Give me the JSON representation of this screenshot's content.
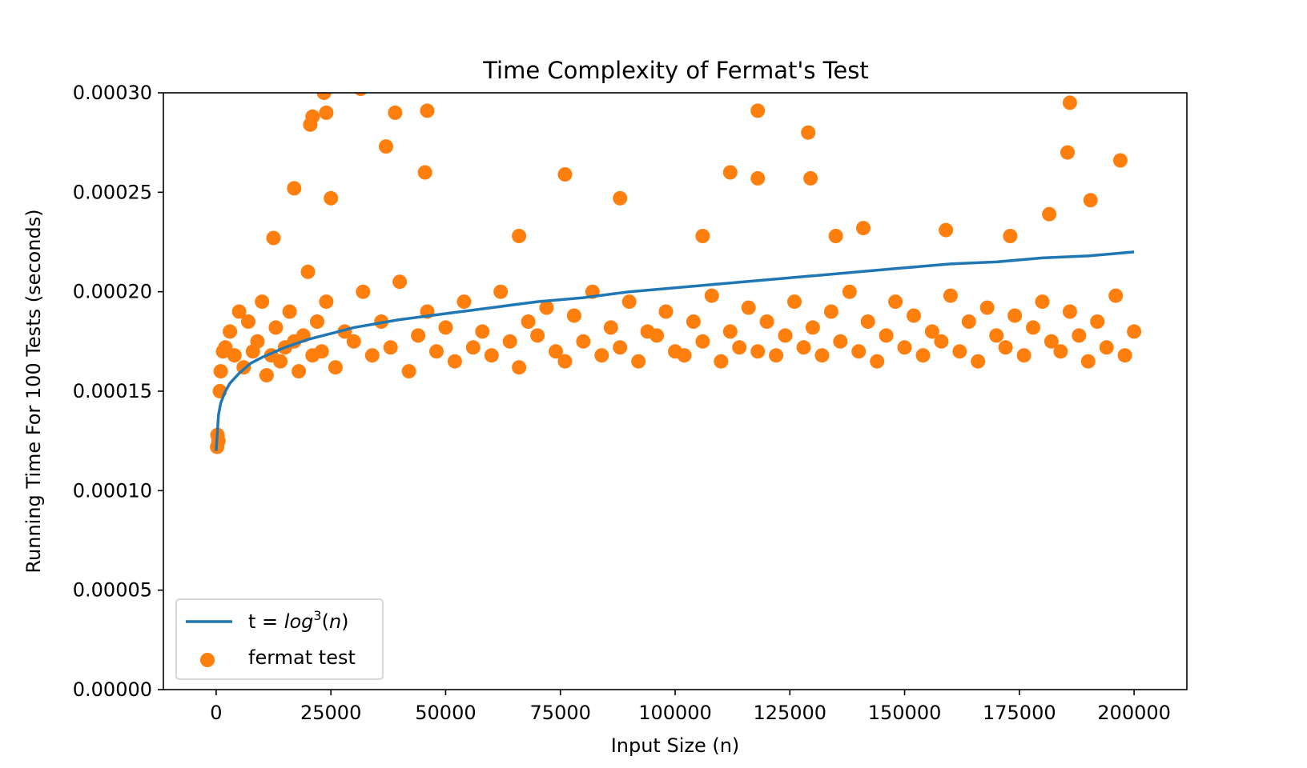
{
  "chart_data": {
    "type": "scatter",
    "title": "Time Complexity of Fermat's Test",
    "xlabel": "Input Size (n)",
    "ylabel": "Running Time For 100 Tests (seconds)",
    "xlim": [
      -11500,
      211500
    ],
    "ylim": [
      0,
      0.0003
    ],
    "x_ticks": [
      0,
      25000,
      50000,
      75000,
      100000,
      125000,
      150000,
      175000,
      200000
    ],
    "x_tick_labels": [
      "0",
      "25000",
      "50000",
      "75000",
      "100000",
      "125000",
      "150000",
      "175000",
      "200000"
    ],
    "y_ticks": [
      0,
      5e-05,
      0.0001,
      0.00015,
      0.0002,
      0.00025,
      0.0003
    ],
    "y_tick_labels": [
      "0.00000",
      "0.00005",
      "0.00010",
      "0.00015",
      "0.00020",
      "0.00025",
      "0.00030"
    ],
    "grid": false,
    "legend_position": "lower-left",
    "series": [
      {
        "name": "t = log³(n)",
        "name_parts": {
          "prefix": "t = ",
          "func": "log",
          "sup": "3",
          "suffix": "(n)"
        },
        "kind": "line",
        "color": "#1f77b4",
        "x": [
          1,
          500,
          1000,
          2000,
          3000,
          5000,
          7500,
          10000,
          15000,
          20000,
          25000,
          30000,
          40000,
          50000,
          60000,
          70000,
          80000,
          90000,
          100000,
          110000,
          120000,
          130000,
          140000,
          150000,
          160000,
          170000,
          180000,
          190000,
          200000
        ],
        "y": [
          0.00012,
          0.000138,
          0.000144,
          0.00015,
          0.000154,
          0.000159,
          0.000164,
          0.000167,
          0.000172,
          0.000176,
          0.000179,
          0.000182,
          0.000186,
          0.000189,
          0.000192,
          0.000195,
          0.000197,
          0.0002,
          0.000202,
          0.000204,
          0.000206,
          0.000208,
          0.00021,
          0.000212,
          0.000214,
          0.000215,
          0.000217,
          0.000218,
          0.00022
        ]
      },
      {
        "name": "fermat test",
        "kind": "scatter",
        "color": "#ff7f0e",
        "x": [
          200,
          300,
          500,
          800,
          1000,
          1500,
          2000,
          3000,
          4000,
          5000,
          6000,
          7000,
          8000,
          9000,
          10000,
          11000,
          12000,
          13000,
          14000,
          15000,
          16000,
          17000,
          18000,
          19000,
          20000,
          21000,
          22000,
          23000,
          24000,
          26000,
          28000,
          30000,
          32000,
          34000,
          36000,
          38000,
          40000,
          42000,
          44000,
          46000,
          48000,
          50000,
          52000,
          54000,
          56000,
          58000,
          60000,
          62000,
          64000,
          66000,
          68000,
          70000,
          72000,
          74000,
          76000,
          78000,
          80000,
          82000,
          84000,
          86000,
          88000,
          90000,
          92000,
          94000,
          96000,
          98000,
          100000,
          102000,
          104000,
          106000,
          108000,
          110000,
          112000,
          114000,
          116000,
          118000,
          120000,
          122000,
          124000,
          126000,
          128000,
          130000,
          132000,
          134000,
          136000,
          138000,
          140000,
          142000,
          144000,
          146000,
          148000,
          150000,
          152000,
          154000,
          156000,
          158000,
          160000,
          162000,
          164000,
          166000,
          168000,
          170000,
          172000,
          174000,
          176000,
          178000,
          180000,
          182000,
          184000,
          186000,
          188000,
          190000,
          192000,
          194000,
          196000,
          198000,
          200000,
          20500,
          21000,
          23500,
          24000,
          31500,
          39000,
          46000,
          118000,
          129000,
          186000,
          17000,
          25000,
          37000,
          45500,
          76000,
          88000,
          112000,
          118000,
          129500,
          185500,
          197000,
          141000,
          159000,
          173000,
          181500,
          190500,
          12500,
          66000,
          106000,
          135000
        ],
        "y": [
          0.000122,
          0.000128,
          0.000125,
          0.00015,
          0.00016,
          0.00017,
          0.000172,
          0.00018,
          0.000168,
          0.00019,
          0.000162,
          0.000185,
          0.00017,
          0.000175,
          0.000195,
          0.000158,
          0.000168,
          0.000182,
          0.000165,
          0.000172,
          0.00019,
          0.000175,
          0.00016,
          0.000178,
          0.00021,
          0.000168,
          0.000185,
          0.00017,
          0.000195,
          0.000162,
          0.00018,
          0.000175,
          0.0002,
          0.000168,
          0.000185,
          0.000172,
          0.000205,
          0.00016,
          0.000178,
          0.00019,
          0.00017,
          0.000182,
          0.000165,
          0.000195,
          0.000172,
          0.00018,
          0.000168,
          0.0002,
          0.000175,
          0.000162,
          0.000185,
          0.000178,
          0.000192,
          0.00017,
          0.000165,
          0.000188,
          0.000175,
          0.0002,
          0.000168,
          0.000182,
          0.000172,
          0.000195,
          0.000165,
          0.00018,
          0.000178,
          0.00019,
          0.00017,
          0.000168,
          0.000185,
          0.000175,
          0.000198,
          0.000165,
          0.00018,
          0.000172,
          0.000192,
          0.00017,
          0.000185,
          0.000168,
          0.000178,
          0.000195,
          0.000172,
          0.000182,
          0.000168,
          0.00019,
          0.000175,
          0.0002,
          0.00017,
          0.000185,
          0.000165,
          0.000178,
          0.000195,
          0.000172,
          0.000188,
          0.000168,
          0.00018,
          0.000175,
          0.000198,
          0.00017,
          0.000185,
          0.000165,
          0.000192,
          0.000178,
          0.000172,
          0.000188,
          0.000168,
          0.000182,
          0.000195,
          0.000175,
          0.00017,
          0.00019,
          0.000178,
          0.000165,
          0.000185,
          0.000172,
          0.000198,
          0.000168,
          0.00018,
          0.000284,
          0.000288,
          0.0003,
          0.00029,
          0.000302,
          0.00029,
          0.000291,
          0.000291,
          0.00028,
          0.000295,
          0.000252,
          0.000247,
          0.000273,
          0.00026,
          0.000259,
          0.000247,
          0.00026,
          0.000257,
          0.000257,
          0.00027,
          0.000266,
          0.000232,
          0.000231,
          0.000228,
          0.000239,
          0.000246,
          0.000227,
          0.000228,
          0.000228,
          0.000228
        ]
      }
    ]
  }
}
